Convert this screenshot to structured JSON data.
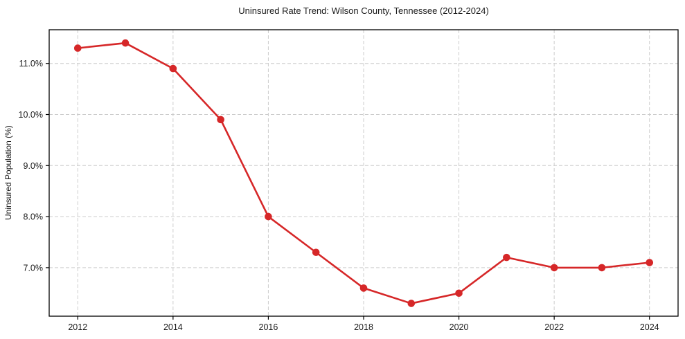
{
  "chart_data": {
    "type": "line",
    "title": "Uninsured Rate Trend: Wilson County, Tennessee (2012-2024)",
    "xlabel": "",
    "ylabel": "Uninsured Population (%)",
    "x": [
      2012,
      2013,
      2014,
      2015,
      2016,
      2017,
      2018,
      2019,
      2020,
      2021,
      2022,
      2023,
      2024
    ],
    "series": [
      {
        "name": "uninsured-rate",
        "values": [
          11.3,
          11.4,
          10.9,
          9.9,
          8.0,
          7.3,
          6.6,
          6.3,
          6.5,
          7.2,
          7.0,
          7.0,
          7.1
        ],
        "color": "#d62728",
        "marker": "circle"
      }
    ],
    "xlim": [
      2011.4,
      2024.6
    ],
    "ylim": [
      6.05,
      11.66
    ],
    "xticks": {
      "values": [
        2012,
        2014,
        2016,
        2018,
        2020,
        2022,
        2024
      ],
      "labels": [
        "2012",
        "2014",
        "2016",
        "2018",
        "2020",
        "2022",
        "2024"
      ]
    },
    "yticks": {
      "values": [
        7.0,
        8.0,
        9.0,
        10.0,
        11.0
      ],
      "labels": [
        "7.0%",
        "8.0%",
        "9.0%",
        "10.0%",
        "11.0%"
      ]
    },
    "grid": {
      "show": true,
      "style": "dashed",
      "color": "#cccccc"
    },
    "legend": {
      "show": false,
      "position": "none"
    },
    "axis_color": "#000000",
    "text_color": "#1a1a1a",
    "plot_background": "#ffffff"
  }
}
